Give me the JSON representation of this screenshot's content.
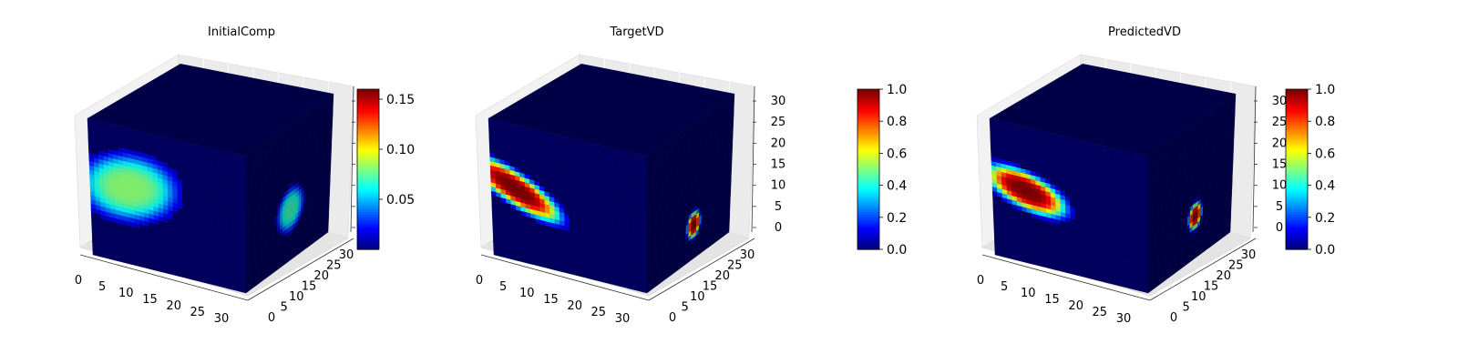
{
  "chart_data": [
    {
      "type": "voxel-3d",
      "title": "InitialComp",
      "x_ticks": [
        "0",
        "5",
        "10",
        "15",
        "20",
        "25",
        "30"
      ],
      "y_ticks": [
        "0",
        "5",
        "10",
        "15",
        "20",
        "25",
        "30"
      ],
      "z_ticks": [
        "",
        "",
        "",
        "",
        "",
        "",
        ""
      ],
      "axis_range": [
        0,
        32
      ],
      "colormap": "jet",
      "colorbar": {
        "min": 0.0,
        "max": 0.16,
        "ticks": [
          "0.05",
          "0.10",
          "0.15"
        ],
        "tick_values": [
          0.05,
          0.1,
          0.15
        ]
      },
      "front_blob": {
        "center": [
          8,
          18
        ],
        "radius": [
          11,
          8
        ],
        "peak": 0.082,
        "angle_deg": 20
      },
      "side_blob": {
        "center": [
          17,
          12
        ],
        "radius": [
          5,
          5
        ],
        "peak": 0.07
      }
    },
    {
      "type": "voxel-3d",
      "title": "TargetVD",
      "x_ticks": [
        "0",
        "5",
        "10",
        "15",
        "20",
        "25",
        "30"
      ],
      "y_ticks": [
        "0",
        "5",
        "10",
        "15",
        "20",
        "25",
        "30"
      ],
      "z_ticks": [
        "0",
        "5",
        "10",
        "15",
        "20",
        "25",
        "30"
      ],
      "axis_range": [
        0,
        32
      ],
      "colormap": "jet",
      "colorbar": {
        "min": 0.0,
        "max": 1.0,
        "ticks": [
          "0.0",
          "0.2",
          "0.4",
          "0.6",
          "0.8",
          "1.0"
        ],
        "tick_values": [
          0,
          0.2,
          0.4,
          0.6,
          0.8,
          1.0
        ]
      },
      "front_blob": {
        "center": [
          5,
          17
        ],
        "radius": [
          11,
          4
        ],
        "peak": 1.0,
        "angle_deg": -28
      },
      "side_blob": {
        "center": [
          18,
          8
        ],
        "radius": [
          2.5,
          3
        ],
        "peak": 1.0
      }
    },
    {
      "type": "voxel-3d",
      "title": "PredictedVD",
      "x_ticks": [
        "0",
        "5",
        "10",
        "15",
        "20",
        "25",
        "30"
      ],
      "y_ticks": [
        "0",
        "5",
        "10",
        "15",
        "20",
        "25",
        "30"
      ],
      "z_ticks": [
        "0",
        "5",
        "10",
        "15",
        "20",
        "25",
        "30"
      ],
      "axis_range": [
        0,
        32
      ],
      "colormap": "jet",
      "colorbar": {
        "min": 0.0,
        "max": 1.0,
        "ticks": [
          "0.0",
          "0.2",
          "0.4",
          "0.6",
          "0.8",
          "1.0"
        ],
        "tick_values": [
          0,
          0.2,
          0.4,
          0.6,
          0.8,
          1.0
        ]
      },
      "front_blob": {
        "center": [
          7,
          17
        ],
        "radius": [
          9,
          4.5
        ],
        "peak": 1.0,
        "angle_deg": -18
      },
      "side_blob": {
        "center": [
          18,
          10
        ],
        "radius": [
          2.5,
          3
        ],
        "peak": 1.0
      }
    }
  ]
}
